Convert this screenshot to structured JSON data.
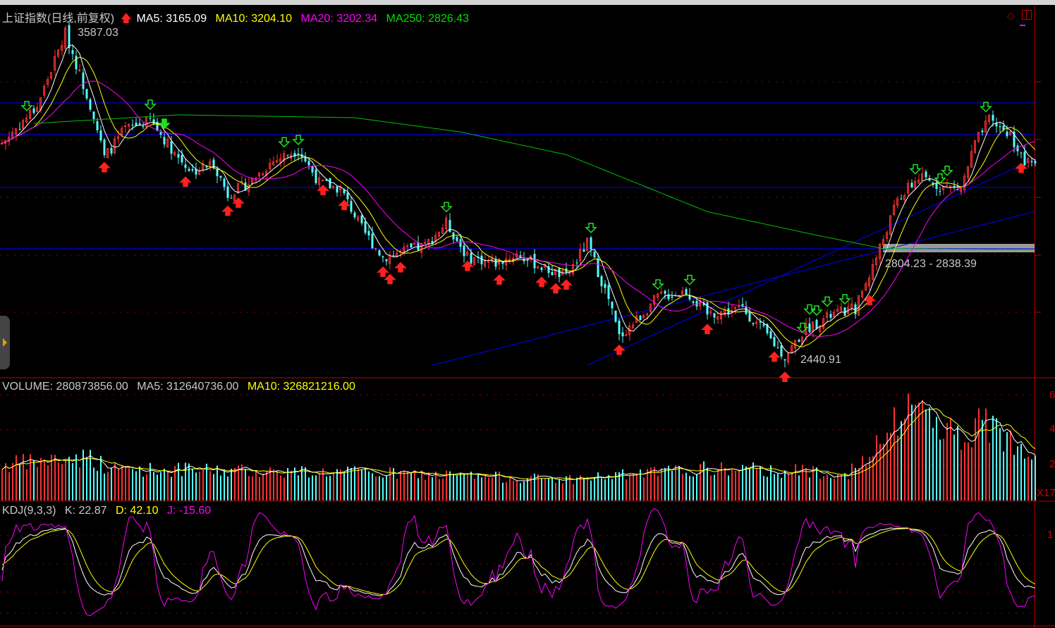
{
  "title": "上证指数(日线,前复权)",
  "main_legend": {
    "ma5": "MA5: 3165.09",
    "ma10": "MA10: 3204.10",
    "ma20": "MA20: 3202.34",
    "ma250": "MA250: 2826.43"
  },
  "annotations": {
    "high": "3587.03",
    "low": "2440.91",
    "band": "2804.23 - 2838.39"
  },
  "volume_legend": {
    "volume": "VOLUME: 280873856.00",
    "ma5": "MA5: 312640736.00",
    "ma10": "MA10: 326821216.00"
  },
  "kdj_legend": {
    "name": "KDJ(9,3,3)",
    "k": "K: 22.87",
    "d": "D: 42.10",
    "j": "J: -15.60"
  },
  "volume_axis": {
    "ticks": [
      "6",
      "4",
      "2"
    ],
    "unit": "X17"
  },
  "kdj_axis": {
    "ticks": [
      "1"
    ]
  },
  "colors": {
    "up": "#ff3232",
    "down": "#54ffff",
    "ma5": "#ffffff",
    "ma10": "#ffff00",
    "ma20": "#ff00ff",
    "ma250": "#00c000",
    "lines": "#0000ff",
    "axis": "#c00000"
  },
  "chart_data": {
    "type": "candlestick",
    "price_range": [
      2420,
      3600
    ],
    "close_keypoints": [
      [
        0,
        3200
      ],
      [
        10,
        3330
      ],
      [
        18,
        3587
      ],
      [
        26,
        3300
      ],
      [
        29,
        3150
      ],
      [
        35,
        3250
      ],
      [
        42,
        3280
      ],
      [
        50,
        3150
      ],
      [
        54,
        3100
      ],
      [
        60,
        3130
      ],
      [
        64,
        3020
      ],
      [
        70,
        3060
      ],
      [
        76,
        3130
      ],
      [
        84,
        3180
      ],
      [
        90,
        3060
      ],
      [
        96,
        3040
      ],
      [
        102,
        2900
      ],
      [
        108,
        2800
      ],
      [
        114,
        2820
      ],
      [
        120,
        2840
      ],
      [
        126,
        2920
      ],
      [
        132,
        2800
      ],
      [
        140,
        2780
      ],
      [
        146,
        2810
      ],
      [
        154,
        2760
      ],
      [
        160,
        2730
      ],
      [
        166,
        2850
      ],
      [
        172,
        2650
      ],
      [
        175,
        2520
      ],
      [
        180,
        2580
      ],
      [
        186,
        2660
      ],
      [
        194,
        2680
      ],
      [
        200,
        2600
      ],
      [
        210,
        2620
      ],
      [
        216,
        2540
      ],
      [
        222,
        2450
      ],
      [
        228,
        2550
      ],
      [
        236,
        2600
      ],
      [
        242,
        2620
      ],
      [
        248,
        2800
      ],
      [
        254,
        3000
      ],
      [
        260,
        3080
      ],
      [
        266,
        3050
      ],
      [
        272,
        3040
      ],
      [
        276,
        3200
      ],
      [
        280,
        3280
      ],
      [
        286,
        3230
      ],
      [
        290,
        3130
      ]
    ],
    "ma250_keypoints": [
      [
        9,
        3270
      ],
      [
        50,
        3300
      ],
      [
        100,
        3290
      ],
      [
        130,
        3240
      ],
      [
        160,
        3160
      ],
      [
        200,
        2960
      ],
      [
        230,
        2880
      ],
      [
        250,
        2830
      ],
      [
        293,
        2826
      ]
    ],
    "volume_keypoints": [
      [
        0,
        2.0
      ],
      [
        25,
        2.5
      ],
      [
        30,
        1.8
      ],
      [
        100,
        1.6
      ],
      [
        160,
        1.2
      ],
      [
        200,
        1.8
      ],
      [
        240,
        1.6
      ],
      [
        245,
        2.2
      ],
      [
        252,
        4.0
      ],
      [
        258,
        5.6
      ],
      [
        266,
        4.5
      ],
      [
        272,
        3.5
      ],
      [
        278,
        4.4
      ],
      [
        290,
        3.0
      ]
    ],
    "horizontal_lines": [
      3342,
      3231,
      3045,
      2830
    ],
    "trend_lines": [
      [
        [
          122,
          2421
        ],
        [
          293,
          2961
        ]
      ],
      [
        [
          166,
          2421
        ],
        [
          293,
          3146
        ]
      ]
    ],
    "buy_signals": [
      29,
      52,
      64,
      67,
      91,
      97,
      108,
      110,
      113,
      132,
      141,
      153,
      157,
      160,
      175,
      200,
      219,
      222,
      246,
      289
    ],
    "sell_signals": [
      7,
      42,
      80,
      84,
      126,
      167,
      186,
      195,
      227,
      229,
      231,
      234,
      239,
      259,
      266,
      268,
      279
    ],
    "sell_signal_filled": [
      46
    ]
  }
}
